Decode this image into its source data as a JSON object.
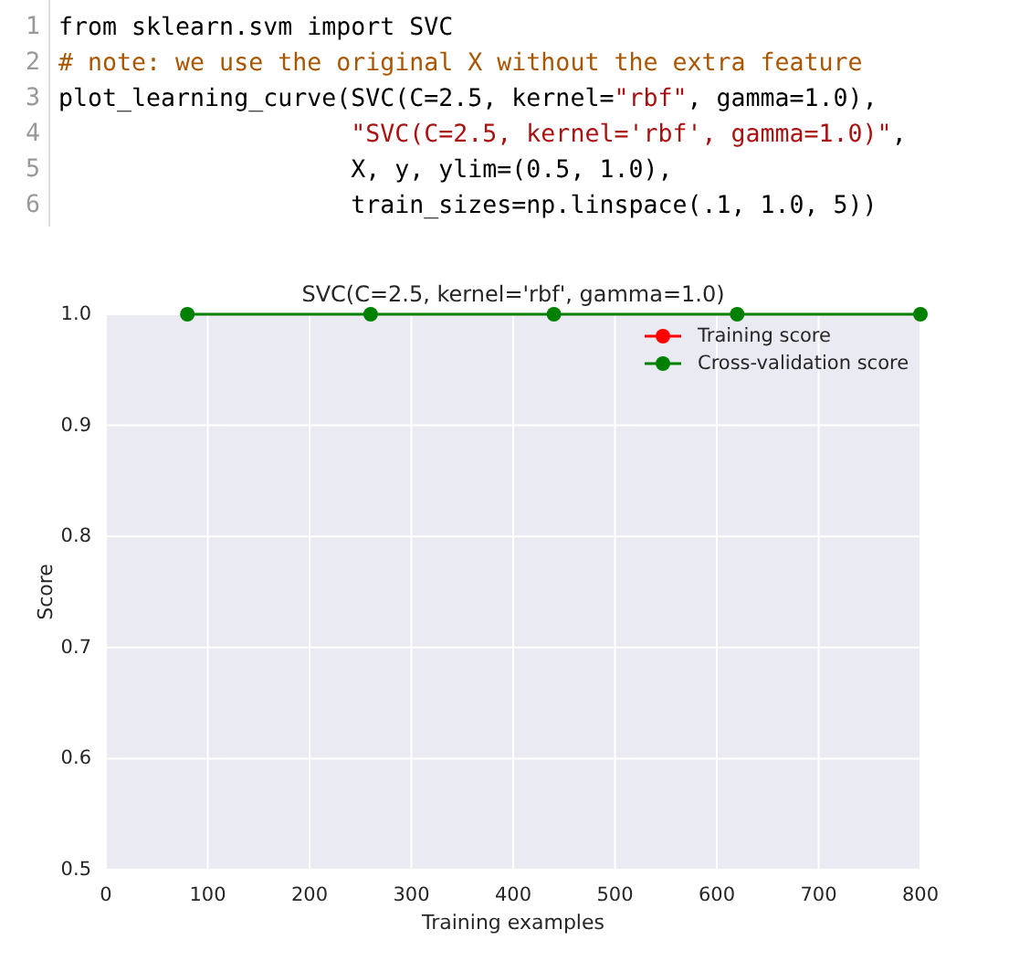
{
  "chart_data": {
    "type": "line",
    "title": "SVC(C=2.5, kernel='rbf', gamma=1.0)",
    "xlabel": "Training examples",
    "ylabel": "Score",
    "annotations": [
      "1",
      "from sklearn.svm import SVC",
      "2",
      "# note: we use the original X without the extra feature",
      "3",
      "plot_learning_curve(SVC(C=2.5, kernel=\"rbf\", gamma=1.0),",
      "4",
      "                    \"SVC(C=2.5, kernel='rbf', gamma=1.0)\",",
      "5",
      "                    X, y, ylim=(0.5, 1.0),",
      "6",
      "                    train_sizes=np.linspace(.1, 1.0, 5))"
    ],
    "x": [
      80,
      260,
      440,
      620,
      800
    ],
    "series": [
      {
        "name": "Training score",
        "color": "#ff0000",
        "values": [
          null,
          null,
          null,
          null,
          null
        ]
      },
      {
        "name": "Cross-validation score",
        "color": "#008000",
        "values": [
          1,
          1,
          1,
          1,
          1
        ]
      }
    ],
    "xlim": [
      0,
      800
    ],
    "xticks": [
      0,
      100,
      200,
      300,
      400,
      500,
      600,
      700,
      800
    ],
    "ylim": [
      0.5,
      1
    ],
    "yticks": [
      0.5,
      0.6,
      0.7,
      0.8,
      0.9,
      {
        "value": 1,
        "label": "1.0"
      }
    ],
    "grid": true,
    "legend": "top right",
    "marker": "circle",
    "line_style": "solid"
  }
}
